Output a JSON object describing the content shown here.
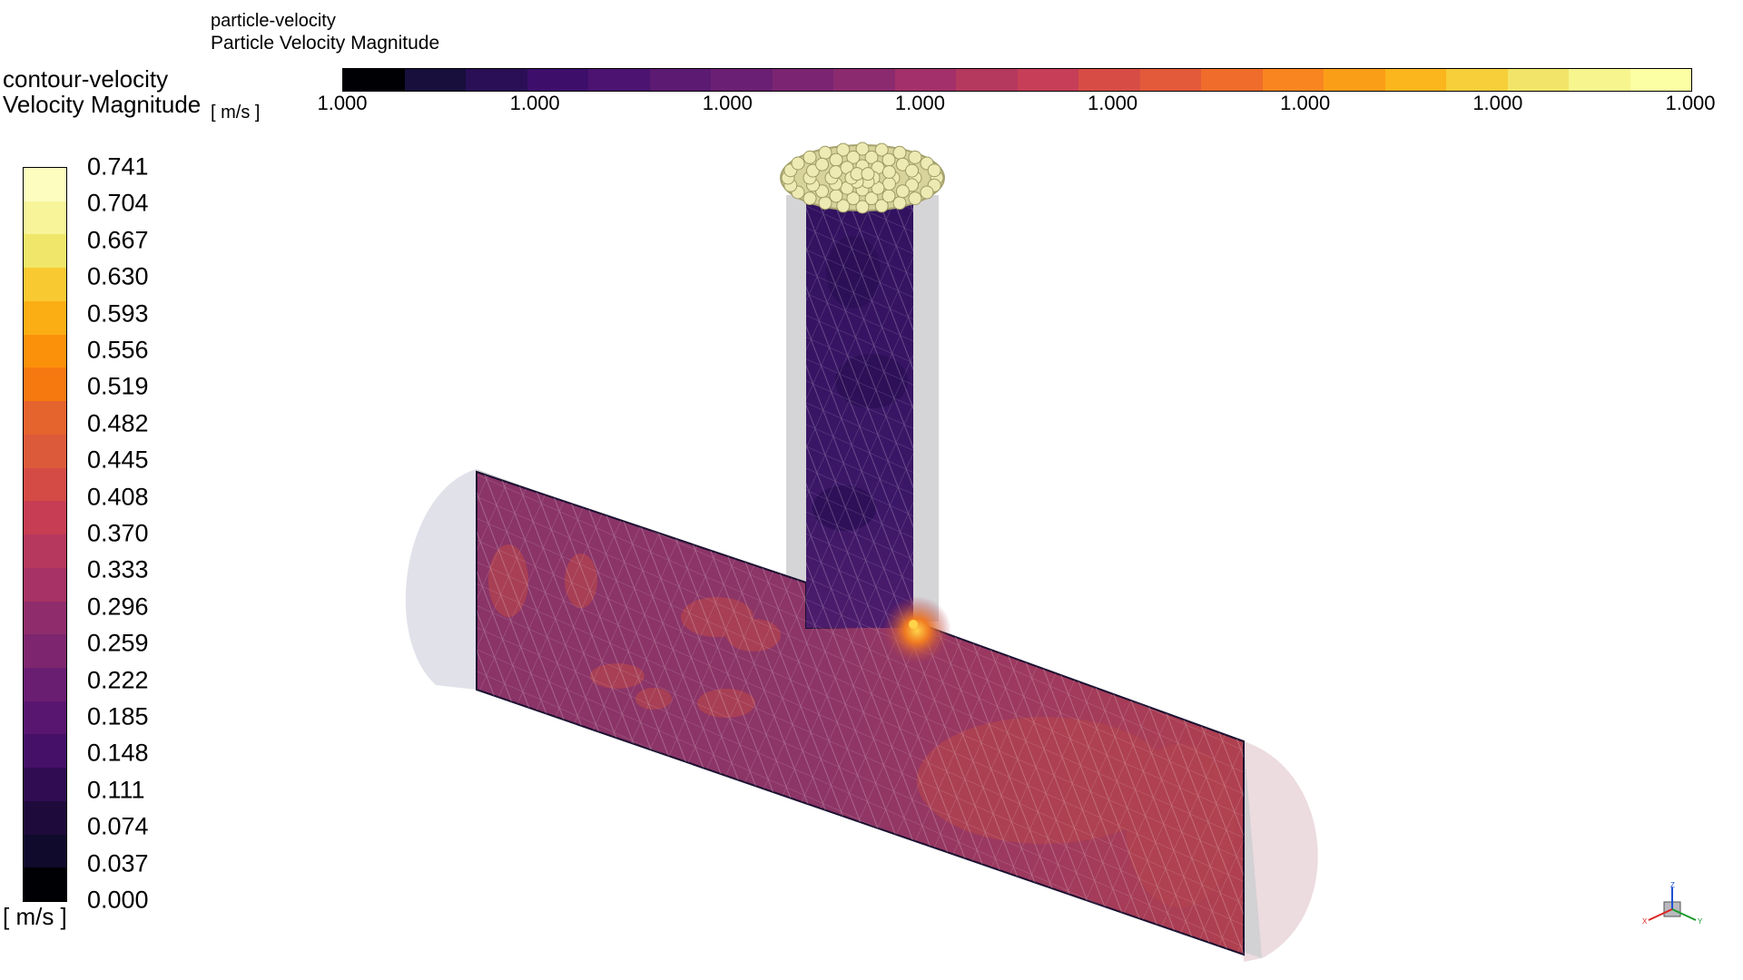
{
  "particle_legend": {
    "name": "particle-velocity",
    "field": "Particle Velocity Magnitude",
    "unit": "[ m/s ]",
    "colors": [
      "#000004",
      "#180f3d",
      "#2a0f57",
      "#3d0f6b",
      "#4c1470",
      "#5c1a72",
      "#6b1f74",
      "#7b2572",
      "#8c2a6f",
      "#a3306a",
      "#b5385f",
      "#c63e57",
      "#d74d45",
      "#e35a3a",
      "#f06c2a",
      "#f88520",
      "#fb9e17",
      "#fbb61d",
      "#f6cf3a",
      "#f1e468",
      "#f7f58e",
      "#fcffa4"
    ],
    "ticks": [
      "1.000",
      "1.000",
      "1.000",
      "1.000",
      "1.000",
      "1.000",
      "1.000",
      "1.000"
    ]
  },
  "contour_legend": {
    "name": "contour-velocity",
    "field": "Velocity Magnitude",
    "unit": "[ m/s ]",
    "colors": [
      "#fcfdbf",
      "#f7f49a",
      "#f0e76a",
      "#f9c932",
      "#fbae13",
      "#fb910a",
      "#f6790f",
      "#e5632c",
      "#dc5a39",
      "#d44b46",
      "#c63d54",
      "#b6385e",
      "#a63266",
      "#8f2c6c",
      "#7d266f",
      "#6a1e72",
      "#581670",
      "#451068",
      "#300c52",
      "#1e0b3b",
      "#100a2d",
      "#000004"
    ],
    "ticks": [
      "0.741",
      "0.704",
      "0.667",
      "0.630",
      "0.593",
      "0.556",
      "0.519",
      "0.482",
      "0.445",
      "0.408",
      "0.370",
      "0.333",
      "0.296",
      "0.259",
      "0.222",
      "0.185",
      "0.148",
      "0.111",
      "0.074",
      "0.037",
      "0.000"
    ]
  },
  "scene": {
    "main_pipe_color": "#8f3568",
    "outlet_region_color": "#b34155",
    "branch_pipe_color": "#3d1866",
    "hotspot_color": "#f6a81e",
    "particle_color": "#e3dfa4",
    "wall_color": "#c8c8cc"
  },
  "axis_triad": {
    "x_label": "X",
    "y_label": "Y",
    "z_label": "Z"
  }
}
